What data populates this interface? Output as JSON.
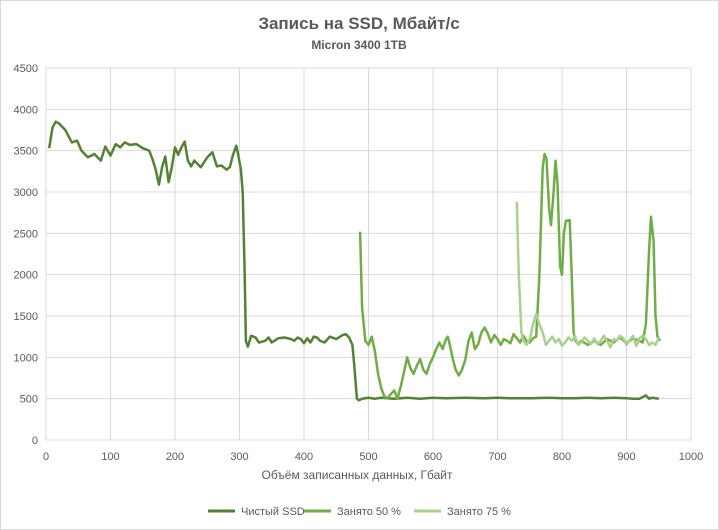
{
  "chart_data": {
    "type": "line",
    "title": "Запись на SSD, Мбайт/с",
    "subtitle": "Micron 3400 1TB",
    "xlabel": "Объём записанных данных, Гбайт",
    "ylabel": "",
    "xlim": [
      0,
      1000
    ],
    "ylim": [
      0,
      4500
    ],
    "x_ticks": [
      0,
      100,
      200,
      300,
      400,
      500,
      600,
      700,
      800,
      900,
      1000
    ],
    "y_ticks": [
      0,
      500,
      1000,
      1500,
      2000,
      2500,
      3000,
      3500,
      4000,
      4500
    ],
    "grid": true,
    "legend_position": "bottom",
    "series": [
      {
        "name": "Чистый SSD",
        "color": "#548235",
        "points": [
          [
            5,
            3530
          ],
          [
            10,
            3780
          ],
          [
            15,
            3850
          ],
          [
            20,
            3830
          ],
          [
            30,
            3750
          ],
          [
            40,
            3600
          ],
          [
            48,
            3620
          ],
          [
            55,
            3500
          ],
          [
            65,
            3420
          ],
          [
            75,
            3460
          ],
          [
            85,
            3380
          ],
          [
            92,
            3550
          ],
          [
            100,
            3440
          ],
          [
            108,
            3580
          ],
          [
            115,
            3540
          ],
          [
            122,
            3600
          ],
          [
            130,
            3570
          ],
          [
            140,
            3580
          ],
          [
            150,
            3530
          ],
          [
            160,
            3500
          ],
          [
            165,
            3400
          ],
          [
            170,
            3270
          ],
          [
            175,
            3090
          ],
          [
            180,
            3300
          ],
          [
            185,
            3430
          ],
          [
            190,
            3120
          ],
          [
            195,
            3300
          ],
          [
            200,
            3540
          ],
          [
            205,
            3450
          ],
          [
            210,
            3540
          ],
          [
            215,
            3610
          ],
          [
            220,
            3380
          ],
          [
            225,
            3310
          ],
          [
            230,
            3380
          ],
          [
            240,
            3300
          ],
          [
            250,
            3420
          ],
          [
            258,
            3480
          ],
          [
            265,
            3310
          ],
          [
            272,
            3320
          ],
          [
            280,
            3270
          ],
          [
            285,
            3300
          ],
          [
            290,
            3450
          ],
          [
            295,
            3560
          ],
          [
            298,
            3450
          ],
          [
            302,
            3280
          ],
          [
            305,
            3000
          ],
          [
            308,
            2000
          ],
          [
            310,
            1200
          ],
          [
            313,
            1130
          ],
          [
            318,
            1260
          ],
          [
            325,
            1240
          ],
          [
            330,
            1180
          ],
          [
            340,
            1200
          ],
          [
            345,
            1240
          ],
          [
            350,
            1180
          ],
          [
            360,
            1230
          ],
          [
            370,
            1240
          ],
          [
            380,
            1220
          ],
          [
            385,
            1200
          ],
          [
            390,
            1240
          ],
          [
            395,
            1220
          ],
          [
            400,
            1170
          ],
          [
            405,
            1230
          ],
          [
            410,
            1180
          ],
          [
            415,
            1250
          ],
          [
            420,
            1240
          ],
          [
            425,
            1200
          ],
          [
            432,
            1180
          ],
          [
            440,
            1250
          ],
          [
            450,
            1220
          ],
          [
            460,
            1270
          ],
          [
            465,
            1280
          ],
          [
            470,
            1240
          ],
          [
            475,
            1150
          ],
          [
            478,
            900
          ],
          [
            480,
            700
          ],
          [
            482,
            500
          ],
          [
            485,
            480
          ],
          [
            490,
            500
          ],
          [
            500,
            510
          ],
          [
            510,
            500
          ],
          [
            520,
            510
          ],
          [
            540,
            500
          ],
          [
            560,
            510
          ],
          [
            580,
            500
          ],
          [
            600,
            510
          ],
          [
            620,
            505
          ],
          [
            650,
            510
          ],
          [
            680,
            505
          ],
          [
            700,
            510
          ],
          [
            720,
            505
          ],
          [
            750,
            505
          ],
          [
            780,
            510
          ],
          [
            800,
            505
          ],
          [
            820,
            505
          ],
          [
            840,
            510
          ],
          [
            860,
            505
          ],
          [
            880,
            510
          ],
          [
            900,
            505
          ],
          [
            910,
            500
          ],
          [
            920,
            500
          ],
          [
            930,
            540
          ],
          [
            935,
            500
          ],
          [
            940,
            510
          ],
          [
            950,
            500
          ]
        ]
      },
      {
        "name": "Занято 50 %",
        "color": "#70ad47",
        "points": [
          [
            487,
            2520
          ],
          [
            490,
            1600
          ],
          [
            495,
            1200
          ],
          [
            500,
            1150
          ],
          [
            505,
            1250
          ],
          [
            510,
            1070
          ],
          [
            515,
            790
          ],
          [
            520,
            620
          ],
          [
            525,
            520
          ],
          [
            530,
            510
          ],
          [
            535,
            560
          ],
          [
            540,
            600
          ],
          [
            545,
            500
          ],
          [
            550,
            650
          ],
          [
            555,
            820
          ],
          [
            560,
            1000
          ],
          [
            565,
            870
          ],
          [
            570,
            800
          ],
          [
            575,
            900
          ],
          [
            580,
            980
          ],
          [
            585,
            850
          ],
          [
            590,
            800
          ],
          [
            595,
            920
          ],
          [
            600,
            1000
          ],
          [
            605,
            1100
          ],
          [
            610,
            1180
          ],
          [
            615,
            1100
          ],
          [
            620,
            1220
          ],
          [
            623,
            1250
          ],
          [
            626,
            1150
          ],
          [
            630,
            1000
          ],
          [
            635,
            850
          ],
          [
            640,
            780
          ],
          [
            645,
            850
          ],
          [
            650,
            970
          ],
          [
            655,
            1200
          ],
          [
            660,
            1300
          ],
          [
            665,
            1100
          ],
          [
            670,
            1160
          ],
          [
            675,
            1300
          ],
          [
            680,
            1360
          ],
          [
            685,
            1290
          ],
          [
            690,
            1180
          ],
          [
            695,
            1270
          ],
          [
            700,
            1220
          ],
          [
            705,
            1150
          ],
          [
            710,
            1220
          ],
          [
            715,
            1200
          ],
          [
            720,
            1170
          ],
          [
            725,
            1280
          ],
          [
            730,
            1230
          ],
          [
            735,
            1180
          ],
          [
            740,
            1260
          ],
          [
            745,
            1200
          ],
          [
            750,
            1180
          ],
          [
            755,
            1230
          ],
          [
            760,
            1250
          ],
          [
            765,
            2000
          ],
          [
            770,
            3300
          ],
          [
            773,
            3460
          ],
          [
            776,
            3400
          ],
          [
            780,
            2800
          ],
          [
            783,
            2600
          ],
          [
            787,
            3000
          ],
          [
            790,
            3380
          ],
          [
            793,
            3100
          ],
          [
            797,
            2100
          ],
          [
            800,
            2000
          ],
          [
            803,
            2500
          ],
          [
            806,
            2650
          ],
          [
            812,
            2660
          ],
          [
            815,
            2000
          ],
          [
            818,
            1300
          ],
          [
            821,
            1200
          ],
          [
            825,
            1160
          ],
          [
            830,
            1200
          ],
          [
            840,
            1150
          ],
          [
            850,
            1200
          ],
          [
            860,
            1150
          ],
          [
            870,
            1220
          ],
          [
            880,
            1180
          ],
          [
            890,
            1240
          ],
          [
            900,
            1170
          ],
          [
            910,
            1230
          ],
          [
            920,
            1200
          ],
          [
            925,
            1180
          ],
          [
            930,
            1400
          ],
          [
            935,
            2300
          ],
          [
            938,
            2700
          ],
          [
            942,
            2400
          ],
          [
            945,
            1500
          ],
          [
            948,
            1250
          ],
          [
            952,
            1200
          ]
        ]
      },
      {
        "name": "Занято 75 %",
        "color": "#a9d18e",
        "points": [
          [
            730,
            2880
          ],
          [
            733,
            2000
          ],
          [
            737,
            1300
          ],
          [
            740,
            1200
          ],
          [
            745,
            1150
          ],
          [
            750,
            1220
          ],
          [
            755,
            1400
          ],
          [
            760,
            1520
          ],
          [
            765,
            1400
          ],
          [
            770,
            1300
          ],
          [
            775,
            1150
          ],
          [
            780,
            1200
          ],
          [
            785,
            1250
          ],
          [
            790,
            1180
          ],
          [
            795,
            1220
          ],
          [
            800,
            1140
          ],
          [
            805,
            1180
          ],
          [
            810,
            1240
          ],
          [
            815,
            1200
          ],
          [
            820,
            1260
          ],
          [
            825,
            1150
          ],
          [
            830,
            1180
          ],
          [
            835,
            1240
          ],
          [
            840,
            1200
          ],
          [
            845,
            1160
          ],
          [
            850,
            1230
          ],
          [
            855,
            1160
          ],
          [
            860,
            1200
          ],
          [
            865,
            1260
          ],
          [
            870,
            1200
          ],
          [
            875,
            1120
          ],
          [
            880,
            1220
          ],
          [
            885,
            1200
          ],
          [
            890,
            1260
          ],
          [
            895,
            1230
          ],
          [
            900,
            1150
          ],
          [
            905,
            1210
          ],
          [
            910,
            1260
          ],
          [
            915,
            1140
          ],
          [
            920,
            1230
          ],
          [
            925,
            1260
          ],
          [
            930,
            1220
          ],
          [
            935,
            1150
          ],
          [
            940,
            1180
          ],
          [
            945,
            1150
          ],
          [
            950,
            1240
          ]
        ]
      }
    ]
  }
}
